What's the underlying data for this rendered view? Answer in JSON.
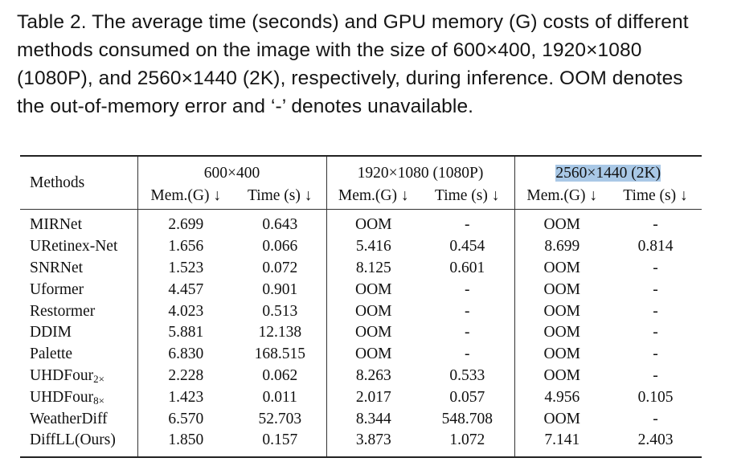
{
  "caption": "Table 2.  The average time (seconds) and GPU memory (G) costs of different methods consumed on the image with the size of 600×400, 1920×1080 (1080P), and 2560×1440 (2K), respectively, during inference. OOM denotes the out-of-memory error and ‘-’ denotes unavailable.",
  "table": {
    "methods_header": "Methods",
    "groups": {
      "g1": "600×400",
      "g2": "1920×1080 (1080P)",
      "g3_pre": "2560×",
      "g3_post": "1440 (2K)"
    },
    "sub_headers": {
      "mem": "Mem.(G) ↓",
      "time": "Time (s) ↓"
    },
    "rows": [
      {
        "method": "MIRNet",
        "c1": "2.699",
        "c2": "0.643",
        "c3": "OOM",
        "c4": "-",
        "c5": "OOM",
        "c6": "-"
      },
      {
        "method": "URetinex-Net",
        "c1": "1.656",
        "c2": "0.066",
        "c3": "5.416",
        "c4": "0.454",
        "c5": "8.699",
        "c6": "0.814"
      },
      {
        "method": "SNRNet",
        "c1": "1.523",
        "c2": "0.072",
        "c3": "8.125",
        "c4": "0.601",
        "c5": "OOM",
        "c6": "-"
      },
      {
        "method": "Uformer",
        "c1": "4.457",
        "c2": "0.901",
        "c3": "OOM",
        "c4": "-",
        "c5": "OOM",
        "c6": "-"
      },
      {
        "method": "Restormer",
        "c1": "4.023",
        "c2": "0.513",
        "c3": "OOM",
        "c4": "-",
        "c5": "OOM",
        "c6": "-"
      },
      {
        "method": "DDIM",
        "c1": "5.881",
        "c2": "12.138",
        "c3": "OOM",
        "c4": "-",
        "c5": "OOM",
        "c6": "-"
      },
      {
        "method": "Palette",
        "c1": "6.830",
        "c2": "168.515",
        "c3": "OOM",
        "c4": "-",
        "c5": "OOM",
        "c6": "-"
      },
      {
        "method": "UHDFour",
        "method_sub": "2×",
        "c1": "2.228",
        "c2": "0.062",
        "c3": "8.263",
        "c4": "0.533",
        "c5": "OOM",
        "c6": "-"
      },
      {
        "method": "UHDFour",
        "method_sub": "8×",
        "c1": "1.423",
        "c2": "0.011",
        "c3": "2.017",
        "c4": "0.057",
        "c5": "4.956",
        "c6": "0.105"
      },
      {
        "method": "WeatherDiff",
        "c1": "6.570",
        "c2": "52.703",
        "c3": "8.344",
        "c4": "548.708",
        "c5": "OOM",
        "c6": "-"
      },
      {
        "method": "DiffLL(Ours)",
        "c1": "1.850",
        "c2": "0.157",
        "c3": "3.873",
        "c4": "1.072",
        "c5": "7.141",
        "c6": "2.403"
      }
    ]
  }
}
